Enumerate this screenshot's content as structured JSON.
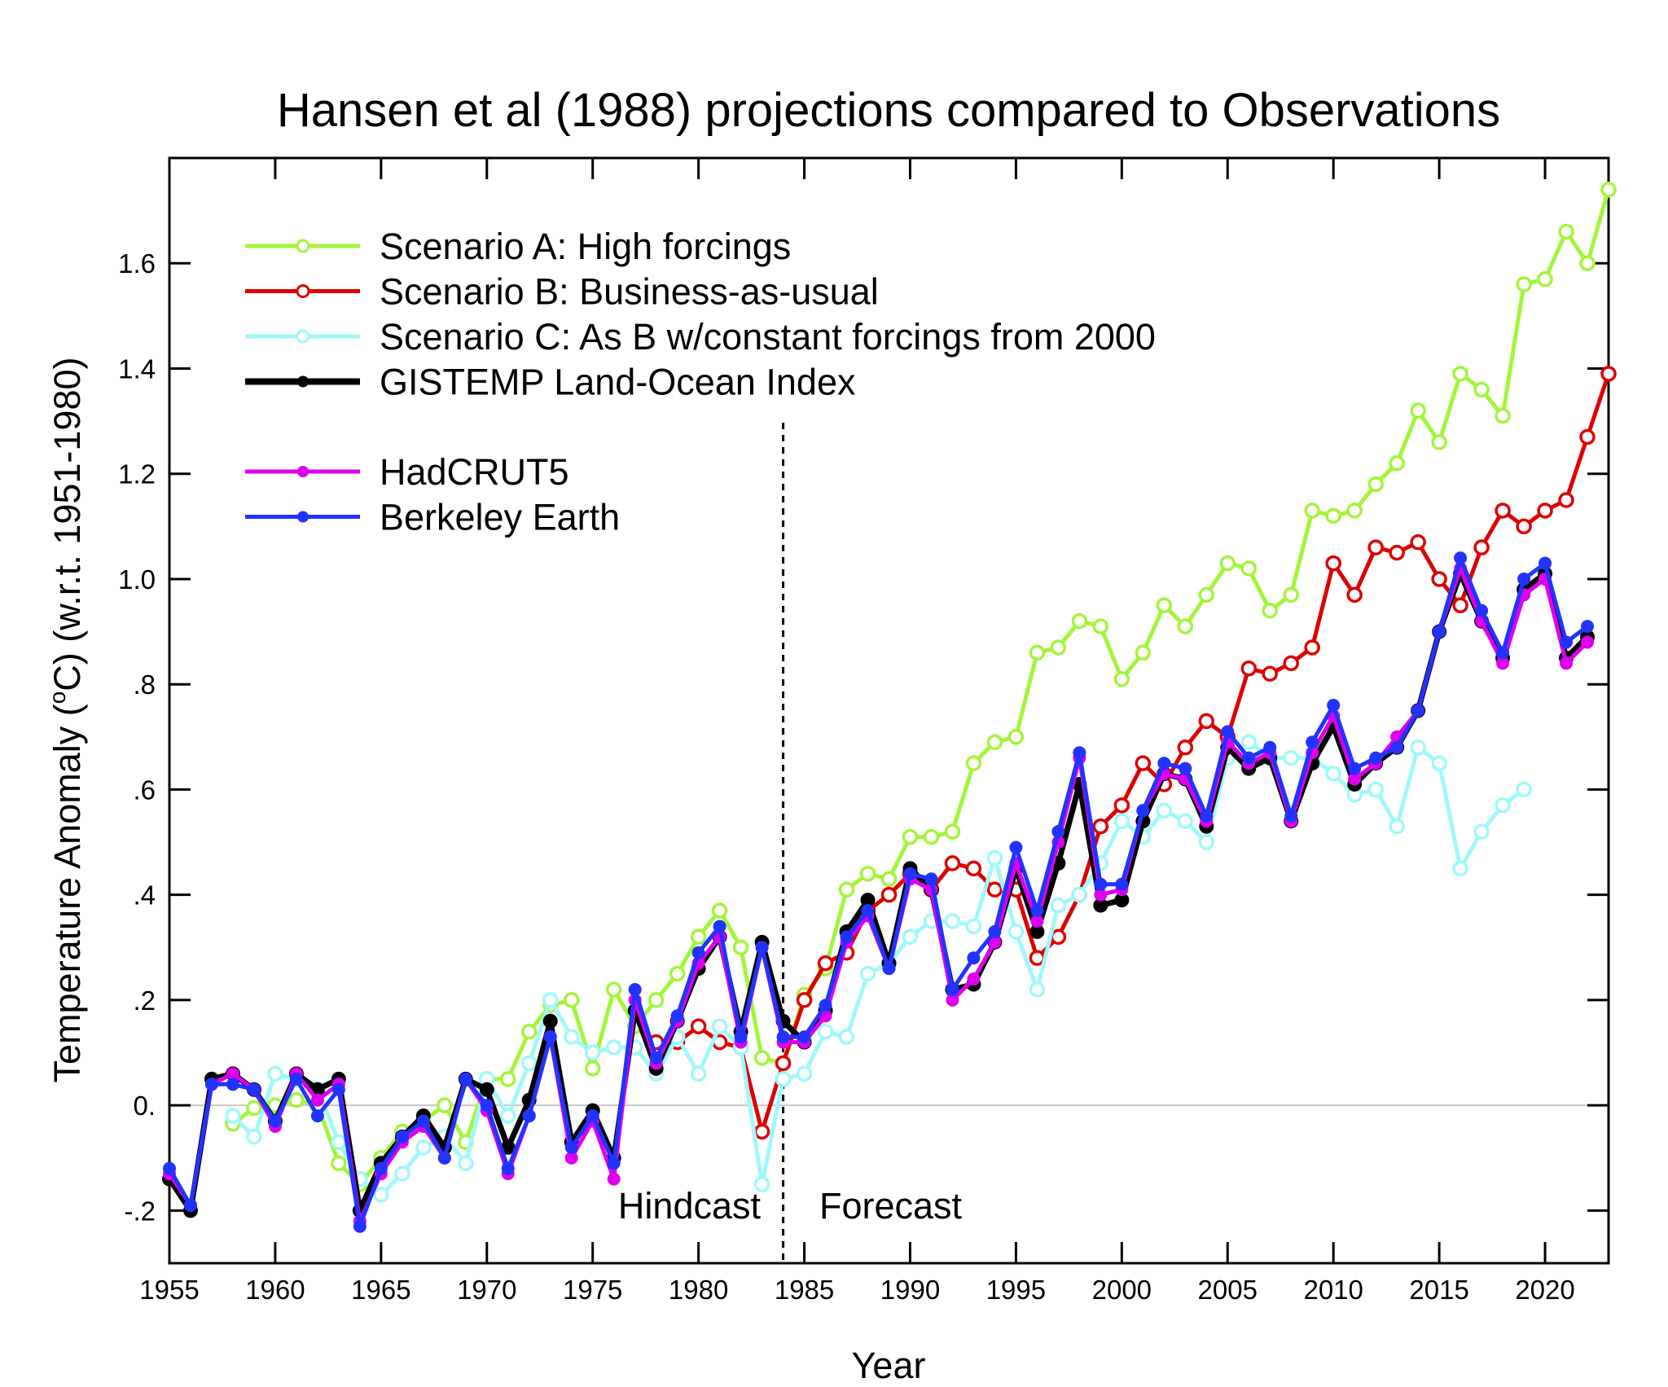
{
  "chart_data": {
    "type": "line",
    "title": "Hansen et al (1988) projections compared to Observations",
    "xlabel": "Year",
    "ylabel": {
      "before": "Temperature Anomaly (",
      "sup": "o",
      "after": "C) (w.r.t. 1951-1980)"
    },
    "xlim": [
      1955,
      2023
    ],
    "ylim": [
      -0.3,
      1.8
    ],
    "x_ticks": [
      1955,
      1960,
      1965,
      1970,
      1975,
      1980,
      1985,
      1990,
      1995,
      2000,
      2005,
      2010,
      2015,
      2020
    ],
    "y_ticks": [
      {
        "value": -0.2,
        "label": "-.2"
      },
      {
        "value": 0.0,
        "label": "0."
      },
      {
        "value": 0.2,
        "label": ".2"
      },
      {
        "value": 0.4,
        "label": ".4"
      },
      {
        "value": 0.6,
        "label": ".6"
      },
      {
        "value": 0.8,
        "label": ".8"
      },
      {
        "value": 1.0,
        "label": "1.0"
      },
      {
        "value": 1.2,
        "label": "1.2"
      },
      {
        "value": 1.4,
        "label": "1.4"
      },
      {
        "value": 1.6,
        "label": "1.6"
      }
    ],
    "zero_line": true,
    "grid": false,
    "legend_position": "top-left",
    "annotations": {
      "divider_year": 1984,
      "left_text": "Hindcast",
      "right_text": "Forecast"
    },
    "series": [
      {
        "name": "Scenario A: High forcings",
        "color": "#a3f53a",
        "marker": "open-circle",
        "start": 1958,
        "values": [
          -0.035,
          -0.005,
          0.0,
          0.01,
          0.0,
          -0.11,
          -0.15,
          -0.1,
          -0.05,
          -0.03,
          0.0,
          -0.07,
          0.05,
          0.05,
          0.14,
          0.19,
          0.2,
          0.07,
          0.22,
          0.15,
          0.2,
          0.25,
          0.32,
          0.37,
          0.3,
          0.09,
          0.08,
          0.21,
          0.26,
          0.41,
          0.44,
          0.43,
          0.51,
          0.51,
          0.52,
          0.65,
          0.69,
          0.7,
          0.86,
          0.87,
          0.92,
          0.91,
          0.81,
          0.86,
          0.95,
          0.91,
          0.97,
          1.03,
          1.02,
          0.94,
          0.97,
          1.13,
          1.12,
          1.13,
          1.18,
          1.22,
          1.32,
          1.26,
          1.39,
          1.36,
          1.31,
          1.56,
          1.57,
          1.66,
          1.6,
          1.74
        ]
      },
      {
        "name": "Scenario B: Business-as-usual",
        "color": "#dd0000",
        "marker": "open-circle",
        "start": 1978,
        "values": [
          0.12,
          0.12,
          0.15,
          0.12,
          0.11,
          -0.05,
          0.08,
          0.2,
          0.27,
          0.29,
          0.37,
          0.4,
          0.44,
          0.41,
          0.46,
          0.45,
          0.41,
          0.41,
          0.28,
          0.32,
          0.4,
          0.53,
          0.57,
          0.65,
          0.61,
          0.68,
          0.73,
          0.7,
          0.83,
          0.82,
          0.84,
          0.87,
          1.03,
          0.97,
          1.06,
          1.05,
          1.07,
          1.0,
          0.95,
          1.06,
          1.13,
          1.1,
          1.13,
          1.15,
          1.27,
          1.39
        ]
      },
      {
        "name": "Scenario C: As B w/constant forcings from 2000",
        "color": "#a0f8fa",
        "marker": "open-circle",
        "start": 1958,
        "values": [
          -0.02,
          -0.06,
          0.06,
          0.05,
          0.03,
          -0.07,
          -0.14,
          -0.17,
          -0.13,
          -0.08,
          -0.06,
          -0.11,
          0.05,
          -0.02,
          0.08,
          0.2,
          0.13,
          0.1,
          0.11,
          0.11,
          0.06,
          0.13,
          0.06,
          0.15,
          0.11,
          -0.15,
          0.05,
          0.06,
          0.14,
          0.13,
          0.25,
          0.27,
          0.32,
          0.35,
          0.35,
          0.34,
          0.47,
          0.33,
          0.22,
          0.38,
          0.4,
          0.46,
          0.54,
          0.51,
          0.56,
          0.54,
          0.5,
          0.66,
          0.69,
          0.66,
          0.66,
          0.66,
          0.63,
          0.59,
          0.6,
          0.53,
          0.68,
          0.65,
          0.45,
          0.52,
          0.57,
          0.6
        ]
      },
      {
        "name": "GISTEMP Land-Ocean Index",
        "color": "#000000",
        "marker": "filled-circle",
        "start": 1955,
        "thick": true,
        "values": [
          -0.14,
          -0.2,
          0.05,
          0.06,
          0.03,
          -0.03,
          0.06,
          0.03,
          0.05,
          -0.2,
          -0.11,
          -0.06,
          -0.02,
          -0.08,
          0.05,
          0.03,
          -0.08,
          0.01,
          0.16,
          -0.07,
          -0.01,
          -0.1,
          0.18,
          0.07,
          0.16,
          0.26,
          0.32,
          0.14,
          0.31,
          0.16,
          0.12,
          0.18,
          0.33,
          0.39,
          0.27,
          0.45,
          0.41,
          0.22,
          0.23,
          0.31,
          0.45,
          0.33,
          0.46,
          0.61,
          0.38,
          0.39,
          0.54,
          0.63,
          0.62,
          0.53,
          0.68,
          0.64,
          0.66,
          0.54,
          0.65,
          0.72,
          0.61,
          0.65,
          0.68,
          0.75,
          0.9,
          1.01,
          0.92,
          0.85,
          0.98,
          1.01,
          0.85,
          0.89
        ]
      },
      {
        "name": "HadCRUT5",
        "color": "#dd00ee",
        "marker": "filled-circle",
        "start": 1955,
        "legend_gap": true,
        "values": [
          -0.13,
          -0.19,
          0.04,
          0.06,
          0.03,
          -0.04,
          0.06,
          0.01,
          0.04,
          -0.22,
          -0.13,
          -0.07,
          -0.04,
          -0.1,
          0.05,
          -0.01,
          -0.13,
          -0.02,
          0.13,
          -0.1,
          -0.03,
          -0.14,
          0.2,
          0.08,
          0.16,
          0.27,
          0.32,
          0.12,
          0.3,
          0.12,
          0.12,
          0.17,
          0.31,
          0.36,
          0.26,
          0.43,
          0.41,
          0.2,
          0.24,
          0.31,
          0.46,
          0.35,
          0.5,
          0.66,
          0.4,
          0.41,
          0.56,
          0.63,
          0.62,
          0.54,
          0.69,
          0.65,
          0.67,
          0.54,
          0.67,
          0.74,
          0.62,
          0.65,
          0.7,
          0.75,
          0.9,
          1.02,
          0.92,
          0.84,
          0.97,
          1.0,
          0.84,
          0.88
        ]
      },
      {
        "name": "Berkeley Earth",
        "color": "#2233ff",
        "marker": "filled-circle",
        "start": 1955,
        "values": [
          -0.12,
          -0.19,
          0.04,
          0.04,
          0.03,
          -0.03,
          0.05,
          -0.02,
          0.03,
          -0.23,
          -0.12,
          -0.06,
          -0.03,
          -0.1,
          0.05,
          0.0,
          -0.12,
          -0.02,
          0.13,
          -0.08,
          -0.02,
          -0.11,
          0.22,
          0.09,
          0.17,
          0.29,
          0.34,
          0.13,
          0.3,
          0.13,
          0.13,
          0.19,
          0.32,
          0.37,
          0.26,
          0.44,
          0.43,
          0.22,
          0.28,
          0.33,
          0.49,
          0.37,
          0.52,
          0.67,
          0.42,
          0.42,
          0.56,
          0.65,
          0.64,
          0.55,
          0.71,
          0.66,
          0.68,
          0.55,
          0.69,
          0.76,
          0.64,
          0.66,
          0.68,
          0.75,
          0.9,
          1.04,
          0.94,
          0.86,
          1.0,
          1.03,
          0.88,
          0.91
        ]
      }
    ]
  }
}
